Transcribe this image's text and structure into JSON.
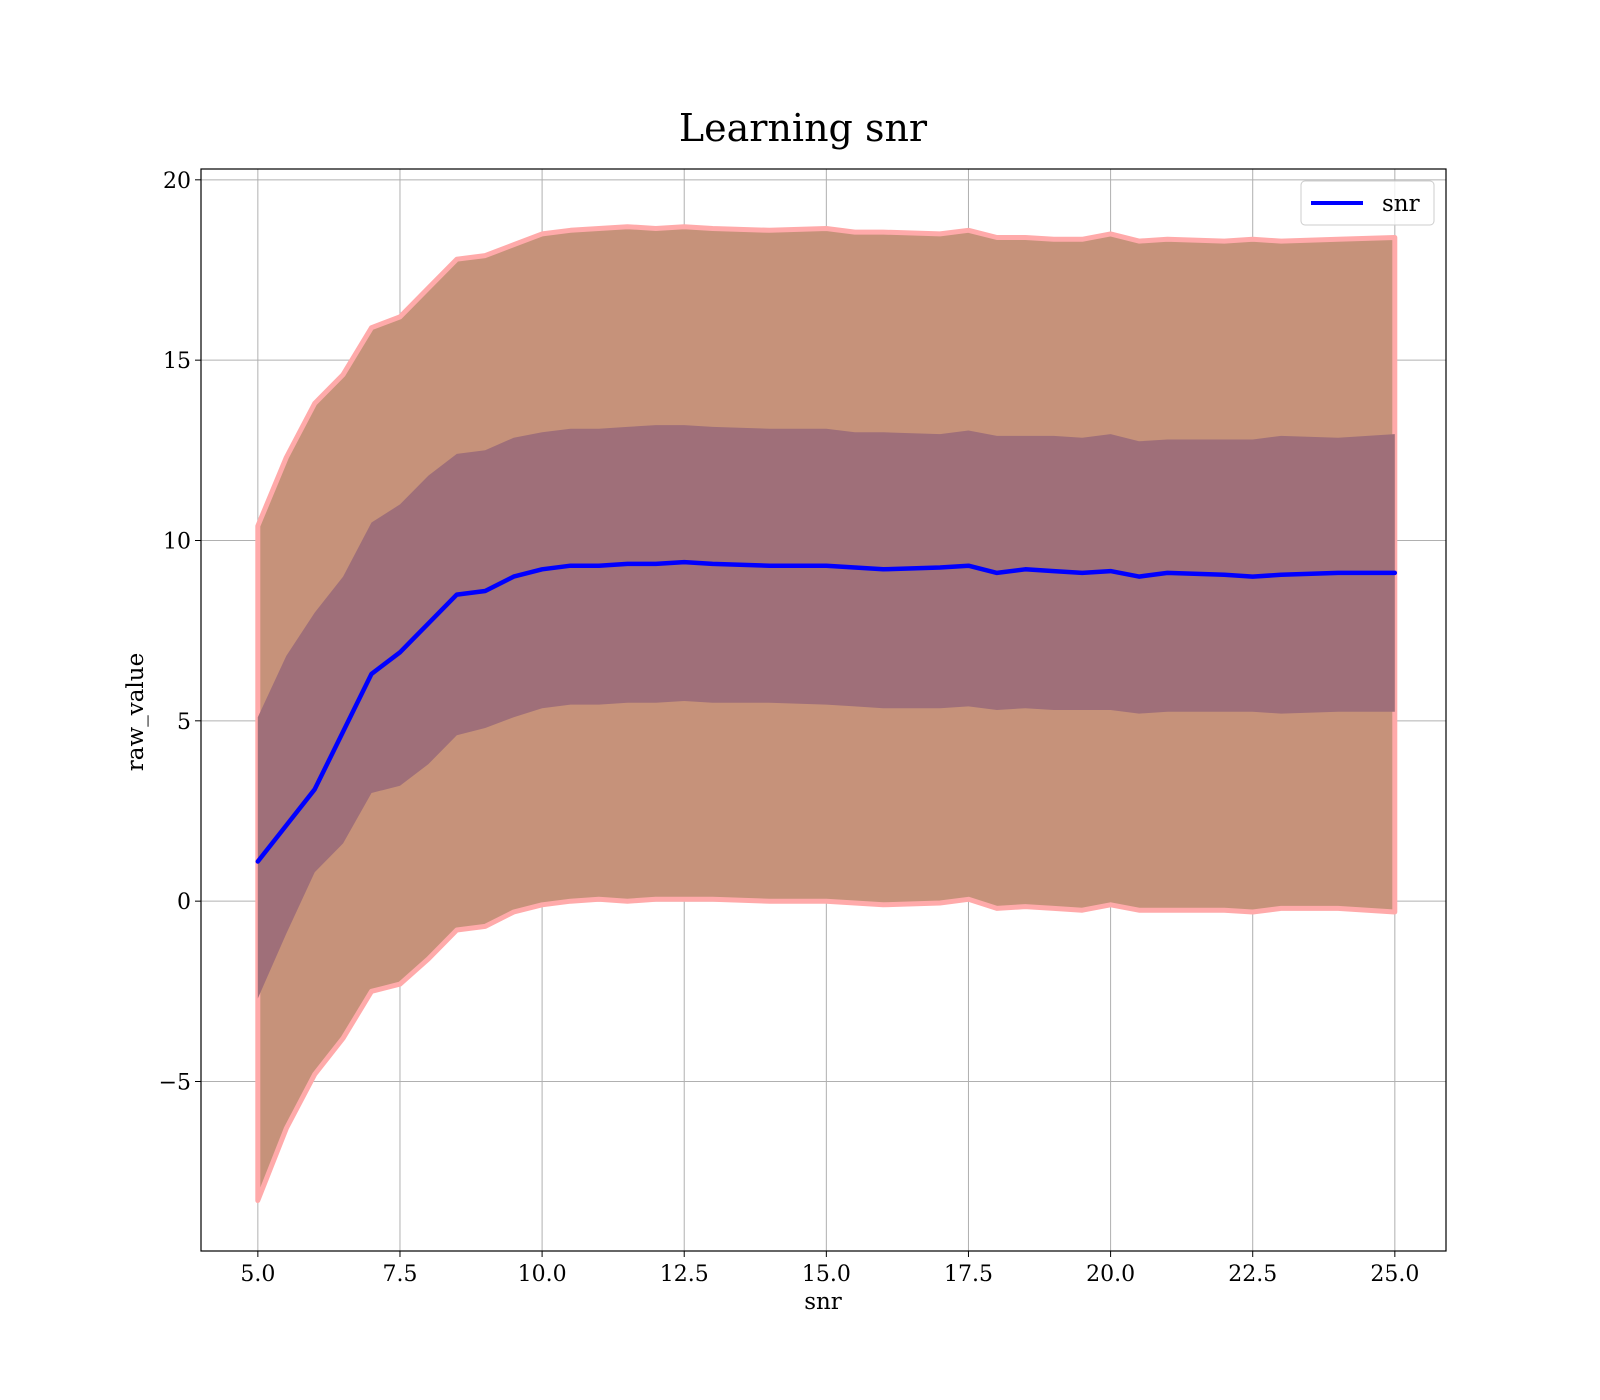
{
  "chart_data": {
    "type": "line",
    "title": "Learning snr",
    "xlabel": "snr",
    "ylabel": "raw_value",
    "xlim": [
      4.0,
      25.9
    ],
    "ylim": [
      -9.7,
      20.3
    ],
    "xticks": [
      5.0,
      7.5,
      10.0,
      12.5,
      15.0,
      17.5,
      20.0,
      22.5,
      25.0
    ],
    "xtick_labels": [
      "5.0",
      "7.5",
      "10.0",
      "12.5",
      "15.0",
      "17.5",
      "20.0",
      "22.5",
      "25.0"
    ],
    "yticks": [
      -5,
      0,
      5,
      10,
      15,
      20
    ],
    "ytick_labels": [
      "−5",
      "0",
      "5",
      "10",
      "15",
      "20"
    ],
    "grid": true,
    "legend": {
      "position": "top-right",
      "entries": [
        "snr"
      ]
    },
    "colors": {
      "line": "#0000ff",
      "outer_band": "#c6927a",
      "outer_band_edge": "#ffaaaa",
      "inner_band": "#9f6f79"
    },
    "series": [
      {
        "name": "snr",
        "x": [
          5.0,
          5.5,
          6.0,
          6.5,
          7.0,
          7.5,
          8.0,
          8.5,
          9.0,
          9.5,
          10.0,
          10.5,
          11.0,
          11.5,
          12.0,
          12.5,
          13.0,
          14.0,
          15.0,
          15.5,
          16.0,
          17.0,
          17.5,
          18.0,
          18.5,
          19.0,
          19.5,
          20.0,
          20.5,
          21.0,
          22.0,
          22.5,
          23.0,
          24.0,
          25.0
        ],
        "y": [
          1.1,
          2.1,
          3.1,
          4.7,
          6.3,
          6.9,
          7.7,
          8.5,
          8.6,
          9.0,
          9.2,
          9.3,
          9.3,
          9.35,
          9.35,
          9.4,
          9.35,
          9.3,
          9.3,
          9.25,
          9.2,
          9.25,
          9.3,
          9.1,
          9.2,
          9.15,
          9.1,
          9.15,
          9.0,
          9.1,
          9.05,
          9.0,
          9.05,
          9.1,
          9.1
        ]
      }
    ],
    "bands": [
      {
        "type": "outer",
        "upper": [
          10.4,
          12.3,
          13.8,
          14.6,
          15.9,
          16.2,
          17.0,
          17.8,
          17.9,
          18.2,
          18.5,
          18.6,
          18.65,
          18.7,
          18.65,
          18.7,
          18.65,
          18.6,
          18.65,
          18.55,
          18.55,
          18.5,
          18.6,
          18.4,
          18.4,
          18.35,
          18.35,
          18.5,
          18.3,
          18.35,
          18.3,
          18.35,
          18.3,
          18.35,
          18.4
        ],
        "lower": [
          -8.3,
          -6.3,
          -4.8,
          -3.8,
          -2.5,
          -2.3,
          -1.6,
          -0.8,
          -0.7,
          -0.3,
          -0.1,
          0.0,
          0.05,
          0.0,
          0.05,
          0.05,
          0.05,
          0.0,
          0.0,
          -0.05,
          -0.1,
          -0.05,
          0.05,
          -0.2,
          -0.15,
          -0.2,
          -0.25,
          -0.1,
          -0.25,
          -0.25,
          -0.25,
          -0.3,
          -0.2,
          -0.2,
          -0.3
        ]
      },
      {
        "type": "inner",
        "upper": [
          5.1,
          6.8,
          8.0,
          9.0,
          10.5,
          11.0,
          11.8,
          12.4,
          12.5,
          12.85,
          13.0,
          13.1,
          13.1,
          13.15,
          13.2,
          13.2,
          13.15,
          13.1,
          13.1,
          13.0,
          13.0,
          12.95,
          13.05,
          12.9,
          12.9,
          12.9,
          12.85,
          12.95,
          12.75,
          12.8,
          12.8,
          12.8,
          12.9,
          12.85,
          12.95
        ],
        "lower": [
          -2.7,
          -0.9,
          0.8,
          1.6,
          3.0,
          3.2,
          3.8,
          4.6,
          4.8,
          5.1,
          5.35,
          5.45,
          5.45,
          5.5,
          5.5,
          5.55,
          5.5,
          5.5,
          5.45,
          5.4,
          5.35,
          5.35,
          5.4,
          5.3,
          5.35,
          5.3,
          5.3,
          5.3,
          5.2,
          5.25,
          5.25,
          5.25,
          5.2,
          5.25,
          5.25
        ]
      }
    ]
  }
}
